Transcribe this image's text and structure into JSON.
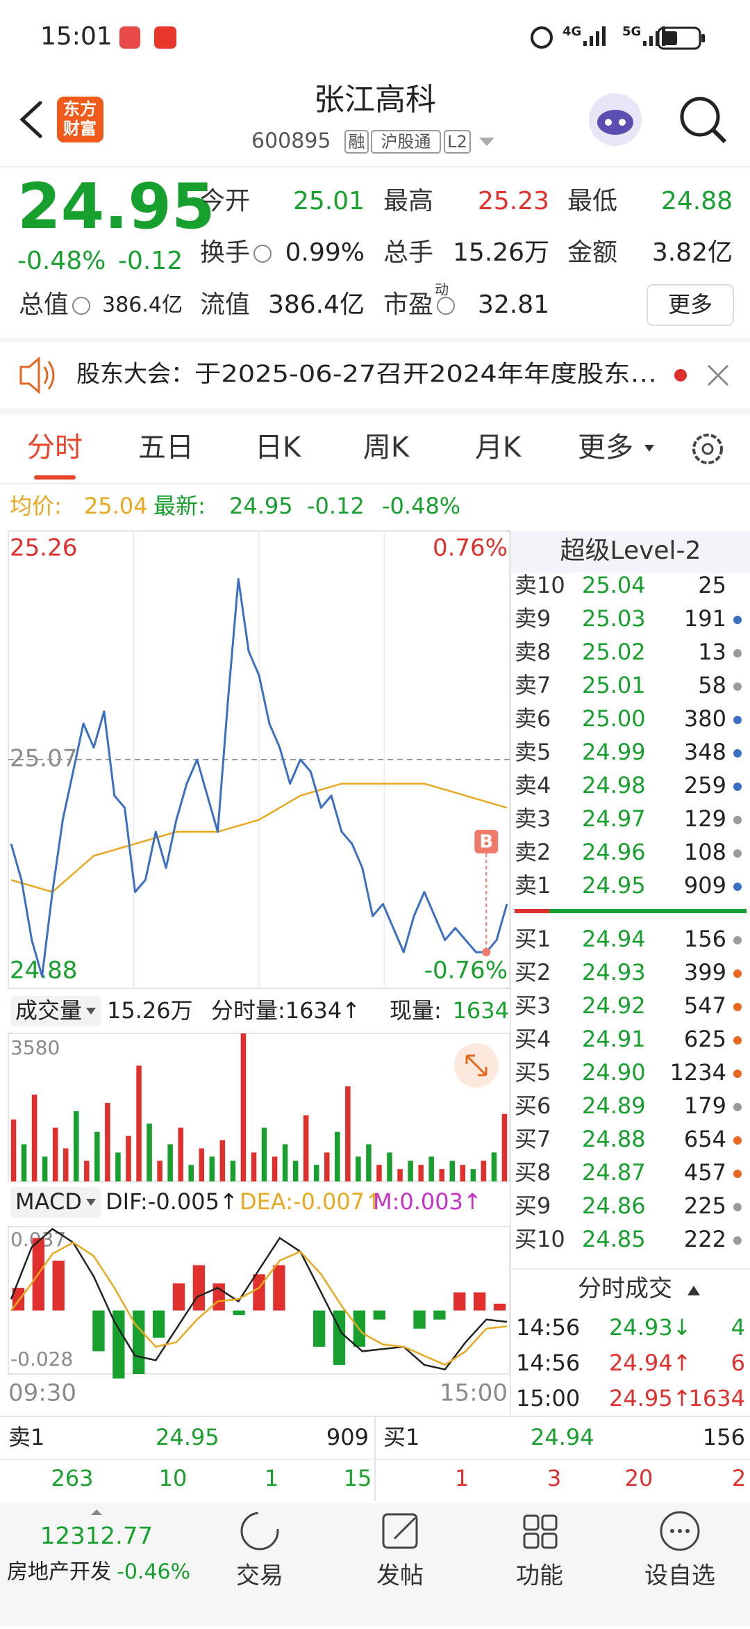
{
  "status": {
    "time": "15:01",
    "network": [
      "4G",
      "5G"
    ]
  },
  "header": {
    "logo": [
      "东方",
      "财富"
    ],
    "title": "张江高科",
    "code": "600895",
    "tags": [
      "融",
      "沪股通",
      "L2"
    ]
  },
  "quote": {
    "price": "24.95",
    "change_pct": "-0.48%",
    "change": "-0.12",
    "color": "#17a02e",
    "stats": [
      {
        "label": "今开",
        "value": "25.01",
        "color": "#17a02e"
      },
      {
        "label": "最高",
        "value": "25.23",
        "color": "#e0302e"
      },
      {
        "label": "最低",
        "value": "24.88",
        "color": "#17a02e"
      },
      {
        "label": "换手",
        "value": "0.99%",
        "color": "#222222"
      },
      {
        "label": "总手",
        "value": "15.26万",
        "color": "#222222"
      },
      {
        "label": "金额",
        "value": "3.82亿",
        "color": "#222222"
      },
      {
        "label": "总值",
        "value": "386.4亿",
        "color": "#222222"
      },
      {
        "label": "流值",
        "value": "386.4亿",
        "color": "#222222"
      },
      {
        "label": "市盈",
        "sup": "动",
        "value": "32.81",
        "color": "#222222"
      }
    ],
    "more": "更多"
  },
  "notice": {
    "label": "股东大会：",
    "text": "于2025-06-27召开2024年年度股东…"
  },
  "tabs": [
    "分时",
    "五日",
    "日K",
    "周K",
    "月K",
    "更多"
  ],
  "info": {
    "avg_label": "均价:",
    "avg": "25.04",
    "last_label": "最新:",
    "last": "24.95",
    "change": "-0.12",
    "pct": "-0.48%"
  },
  "intraday": {
    "type": "line",
    "ylim": [
      24.88,
      25.26
    ],
    "yticks": [
      24.88,
      25.07,
      25.26
    ],
    "y2lim": [
      -0.76,
      0.76
    ],
    "y2ticks": [
      {
        "value": -0.76,
        "label": "-0.76%"
      },
      {
        "value": 0.76,
        "label": "0.76%"
      }
    ],
    "x_labels": [
      "09:30",
      "15:00"
    ],
    "price_color": "#3a6fc4",
    "avg_color": "#e8a820",
    "prices": [
      25.0,
      24.97,
      24.92,
      24.89,
      24.96,
      25.02,
      25.06,
      25.1,
      25.08,
      25.11,
      25.04,
      25.03,
      24.96,
      24.97,
      25.01,
      24.98,
      25.02,
      25.05,
      25.07,
      25.04,
      25.01,
      25.12,
      25.22,
      25.16,
      25.14,
      25.1,
      25.08,
      25.05,
      25.07,
      25.06,
      25.03,
      25.04,
      25.01,
      25.0,
      24.98,
      24.94,
      24.95,
      24.93,
      24.91,
      24.94,
      24.96,
      24.94,
      24.92,
      24.93,
      24.92,
      24.91,
      24.91,
      24.92,
      24.95
    ],
    "avg": [
      24.97,
      24.96,
      24.99,
      25.0,
      25.01,
      25.01,
      25.02,
      25.04,
      25.05,
      25.05,
      25.05,
      25.04,
      25.03
    ],
    "marker": {
      "label": "B",
      "index": 46
    }
  },
  "volume": {
    "title": "成交量",
    "total": "15.26万",
    "period_label": "分时量:1634↑",
    "now_label": "现量:",
    "now_value": "1634",
    "ylim": [
      0,
      3580
    ],
    "yticks": [
      3580
    ],
    "values": [
      1500,
      900,
      2100,
      600,
      1300,
      800,
      1700,
      500,
      1200,
      1900,
      700,
      1100,
      2800,
      1400,
      500,
      900,
      1300,
      400,
      800,
      600,
      1000,
      500,
      3580,
      700,
      1300,
      600,
      900,
      500,
      1600,
      400,
      700,
      1200,
      2300,
      600,
      900,
      400,
      700,
      300,
      500,
      400,
      600,
      300,
      500,
      400,
      300,
      500,
      700,
      1634
    ],
    "colors": [
      "#e0302e",
      "#17a02e",
      "#e0302e",
      "#17a02e",
      "#e0302e",
      "#e0302e",
      "#17a02e",
      "#e0302e",
      "#17a02e",
      "#e0302e",
      "#17a02e",
      "#e0302e",
      "#e0302e",
      "#17a02e",
      "#e0302e",
      "#17a02e",
      "#e0302e",
      "#17a02e",
      "#e0302e",
      "#17a02e",
      "#e0302e",
      "#17a02e",
      "#e0302e",
      "#e0302e",
      "#17a02e",
      "#e0302e",
      "#17a02e",
      "#17a02e",
      "#e0302e",
      "#17a02e",
      "#e0302e",
      "#17a02e",
      "#e0302e",
      "#17a02e",
      "#17a02e",
      "#e0302e",
      "#17a02e",
      "#e0302e",
      "#17a02e",
      "#e0302e",
      "#17a02e",
      "#e0302e",
      "#17a02e",
      "#e0302e",
      "#17a02e",
      "#e0302e",
      "#17a02e",
      "#e0302e"
    ]
  },
  "macd": {
    "title": "MACD",
    "dif": "DIF:-0.005↑",
    "dea": "DEA:-0.007↑",
    "m": "M:0.003↑",
    "ylim": [
      -0.028,
      0.037
    ],
    "yticks": [
      -0.028,
      0.037
    ],
    "dif_values": [
      0.005,
      0.028,
      0.036,
      0.03,
      0.015,
      -0.005,
      -0.02,
      -0.022,
      -0.008,
      0.006,
      0.01,
      0.004,
      0.018,
      0.032,
      0.026,
      0.008,
      -0.01,
      -0.018,
      -0.017,
      -0.016,
      -0.024,
      -0.026,
      -0.014,
      -0.004,
      -0.005
    ],
    "dea_values": [
      0.0,
      0.012,
      0.025,
      0.03,
      0.024,
      0.01,
      -0.006,
      -0.016,
      -0.014,
      -0.004,
      0.004,
      0.005,
      0.01,
      0.022,
      0.026,
      0.016,
      0.002,
      -0.01,
      -0.015,
      -0.016,
      -0.02,
      -0.024,
      -0.018,
      -0.008,
      -0.007
    ],
    "m_values": [
      0.01,
      0.032,
      0.022,
      0.0,
      -0.018,
      -0.03,
      -0.028,
      -0.012,
      0.012,
      0.02,
      0.012,
      -0.002,
      0.016,
      0.02,
      0.0,
      -0.016,
      -0.024,
      -0.016,
      -0.004,
      0.0,
      -0.008,
      -0.004,
      0.008,
      0.008,
      0.003
    ]
  },
  "order_book": {
    "title": "超级Level-2",
    "asks": [
      {
        "label": "卖10",
        "price": "25.04",
        "volume": "25",
        "dot": null
      },
      {
        "label": "卖9",
        "price": "25.03",
        "volume": "191",
        "dot": "#3a6fc4"
      },
      {
        "label": "卖8",
        "price": "25.02",
        "volume": "13",
        "dot": "#9a9a9a"
      },
      {
        "label": "卖7",
        "price": "25.01",
        "volume": "58",
        "dot": "#9a9a9a"
      },
      {
        "label": "卖6",
        "price": "25.00",
        "volume": "380",
        "dot": "#3a6fc4"
      },
      {
        "label": "卖5",
        "price": "24.99",
        "volume": "348",
        "dot": "#3a6fc4"
      },
      {
        "label": "卖4",
        "price": "24.98",
        "volume": "259",
        "dot": "#3a6fc4"
      },
      {
        "label": "卖3",
        "price": "24.97",
        "volume": "129",
        "dot": "#9a9a9a"
      },
      {
        "label": "卖2",
        "price": "24.96",
        "volume": "108",
        "dot": "#9a9a9a"
      },
      {
        "label": "卖1",
        "price": "24.95",
        "volume": "909",
        "dot": "#3a6fc4"
      }
    ],
    "bids": [
      {
        "label": "买1",
        "price": "24.94",
        "volume": "156",
        "dot": "#9a9a9a"
      },
      {
        "label": "买2",
        "price": "24.93",
        "volume": "399",
        "dot": "#e8661e"
      },
      {
        "label": "买3",
        "price": "24.92",
        "volume": "547",
        "dot": "#e8661e"
      },
      {
        "label": "买4",
        "price": "24.91",
        "volume": "625",
        "dot": "#e8661e"
      },
      {
        "label": "买5",
        "price": "24.90",
        "volume": "1234",
        "dot": "#e8661e"
      },
      {
        "label": "买6",
        "price": "24.89",
        "volume": "179",
        "dot": "#9a9a9a"
      },
      {
        "label": "买7",
        "price": "24.88",
        "volume": "654",
        "dot": "#e8661e"
      },
      {
        "label": "买8",
        "price": "24.87",
        "volume": "457",
        "dot": "#e8661e"
      },
      {
        "label": "买9",
        "price": "24.86",
        "volume": "225",
        "dot": "#9a9a9a"
      },
      {
        "label": "买10",
        "price": "24.85",
        "volume": "222",
        "dot": "#9a9a9a"
      }
    ]
  },
  "trades": {
    "title": "分时成交",
    "rows": [
      {
        "time": "14:56",
        "price": "24.93↓",
        "volume": "4",
        "color": "#17a02e"
      },
      {
        "time": "14:56",
        "price": "24.94↑",
        "volume": "6",
        "color": "#e0302e"
      },
      {
        "time": "15:00",
        "price": "24.95↑",
        "volume": "1634",
        "color": "#e0302e"
      }
    ]
  },
  "bottom": {
    "ask": {
      "label": "卖1",
      "price": "24.95",
      "volume": "909"
    },
    "bid": {
      "label": "买1",
      "price": "24.94",
      "volume": "156"
    },
    "ask_counts": [
      "263",
      "10",
      "1",
      "15"
    ],
    "bid_counts": [
      "1",
      "3",
      "20",
      "2"
    ]
  },
  "nav": {
    "index_value": "12312.77",
    "sector": "房地产开发",
    "sector_change": "-0.46%",
    "items": [
      "交易",
      "发帖",
      "功能",
      "设自选"
    ]
  }
}
